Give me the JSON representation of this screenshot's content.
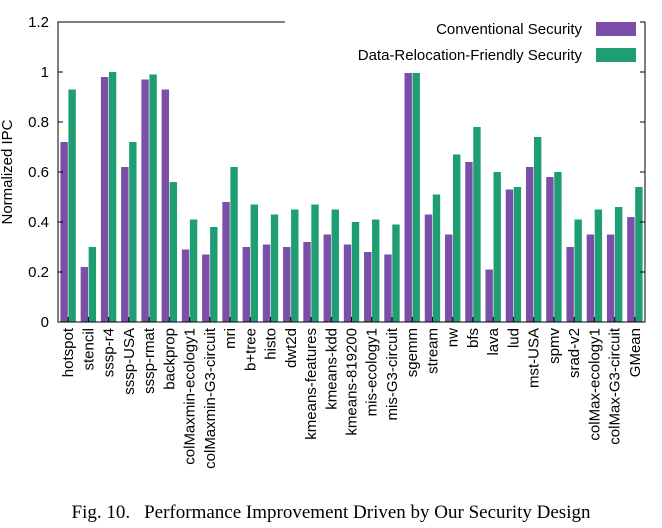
{
  "caption": {
    "label": "Fig. 10.",
    "text": "Performance Improvement Driven by Our Security Design"
  },
  "chart_data": {
    "type": "bar",
    "ylabel": "Normalized IPC",
    "xlabel": "",
    "ylim": [
      0,
      1.2
    ],
    "yticks": [
      0,
      0.2,
      0.4,
      0.6,
      0.8,
      1,
      1.2
    ],
    "ytick_labels": [
      "0",
      "0.2",
      "0.4",
      "0.6",
      "0.8",
      "1",
      "1.2"
    ],
    "grid": false,
    "legend_position": "top-right",
    "categories": [
      "hotspot",
      "stencil",
      "sssp-r4",
      "sssp-USA",
      "sssp-rmat",
      "backprop",
      "colMaxmin-ecology1",
      "colMaxmin-G3-circuit",
      "mri",
      "b+tree",
      "histo",
      "dwt2d",
      "kmeans-features",
      "kmeans-kdd",
      "kmeans-819200",
      "mis-ecology1",
      "mis-G3-circuit",
      "sgemm",
      "stream",
      "nw",
      "bfs",
      "lava",
      "lud",
      "mst-USA",
      "spmv",
      "srad-v2",
      "colMax-ecology1",
      "colMax-G3-circuit",
      "GMean"
    ],
    "series": [
      {
        "name": "Conventional Security",
        "color": "#7b4fa8",
        "values": [
          0.72,
          0.22,
          0.98,
          0.62,
          0.97,
          0.93,
          0.29,
          0.27,
          0.48,
          0.3,
          0.31,
          0.3,
          0.32,
          0.35,
          0.31,
          0.28,
          0.27,
          1.0,
          0.43,
          0.35,
          0.64,
          0.21,
          0.53,
          0.62,
          0.58,
          0.3,
          0.35,
          0.35,
          0.42
        ]
      },
      {
        "name": "Data-Relocation-Friendly Security",
        "color": "#1f9e74",
        "values": [
          0.93,
          0.3,
          1.0,
          0.72,
          0.99,
          0.56,
          0.41,
          0.38,
          0.62,
          0.47,
          0.43,
          0.45,
          0.47,
          0.45,
          0.4,
          0.41,
          0.39,
          1.0,
          0.51,
          0.67,
          0.78,
          0.6,
          0.54,
          0.74,
          0.6,
          0.41,
          0.45,
          0.46,
          0.54
        ]
      }
    ]
  }
}
